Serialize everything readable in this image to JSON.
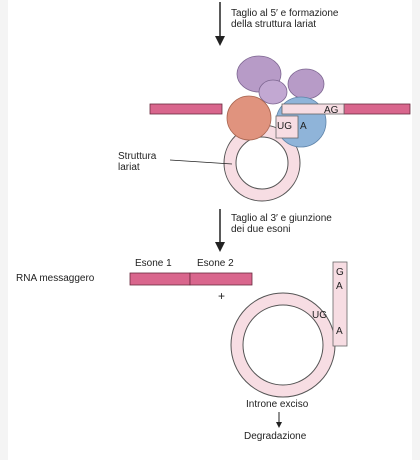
{
  "steps": {
    "cut5_line1": "Taglio al 5′ e formazione",
    "cut5_line2": "della struttura lariat",
    "cut3_line1": "Taglio al 3′ e giunzione",
    "cut3_line2": "dei due esoni"
  },
  "labels": {
    "lariat_line1": "Struttura",
    "lariat_line2": "lariat",
    "exon1": "Esone 1",
    "exon2": "Esone 2",
    "mrna": "RNA messaggero",
    "plus": "+",
    "excised": "Introne exciso",
    "degradation": "Degradazione"
  },
  "nucleotides": {
    "ug": "UG",
    "a": "A",
    "ag": "AG",
    "g": "G",
    "a2": "A",
    "ug2": "UG",
    "a3": "A"
  },
  "colors": {
    "exon": "#d9668d",
    "intron": "#f7dde3",
    "snrnp_purple": "#b79bc7",
    "snrnp_salmon": "#e0937e",
    "snrnp_blue": "#8fb4d9"
  }
}
